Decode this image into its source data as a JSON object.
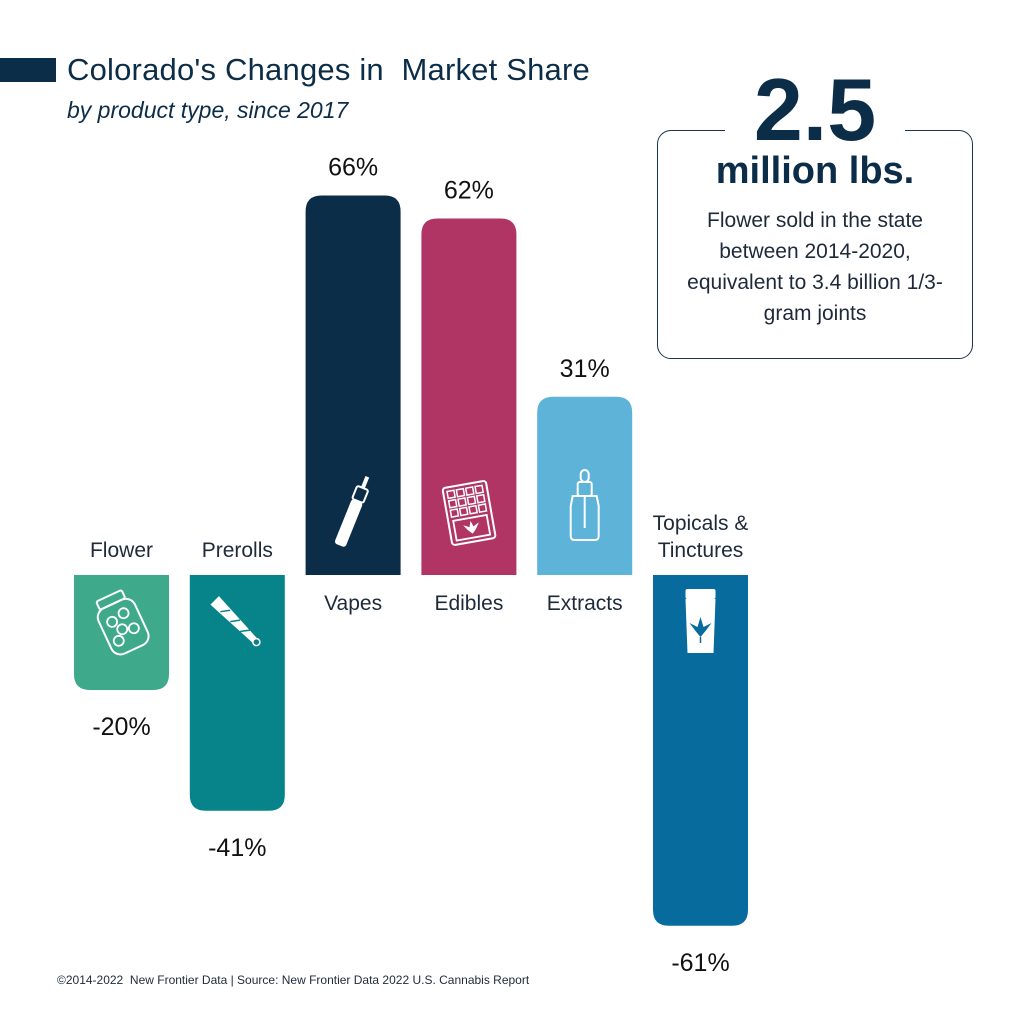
{
  "header": {
    "title": "Colorado's Changes in  Market Share",
    "subtitle": "by product type, since 2017"
  },
  "callout": {
    "big_number": "2.5",
    "unit": "million lbs.",
    "text": "Flower sold in the state between 2014-2020, equivalent to 3.4 billion 1/3-gram joints"
  },
  "footer": "©2014-2022  New Frontier Data | Source: New Frontier Data 2022 U.S. Cannabis Report",
  "chart_data": {
    "type": "bar",
    "categories": [
      "Flower",
      "Prerolls",
      "Vapes",
      "Edibles",
      "Extracts",
      "Topicals & Tinctures"
    ],
    "category_lines": [
      [
        "Flower"
      ],
      [
        "Prerolls"
      ],
      [
        "Vapes"
      ],
      [
        "Edibles"
      ],
      [
        "Extracts"
      ],
      [
        "Topicals &",
        "Tinctures"
      ]
    ],
    "values": [
      -20,
      -41,
      66,
      62,
      31,
      -61
    ],
    "value_labels": [
      "-20%",
      "-41%",
      "66%",
      "62%",
      "31%",
      "-61%"
    ],
    "unit": "%",
    "icons": [
      "jar-icon",
      "joint-icon",
      "vape-pen-icon",
      "chocolate-bar-icon",
      "dropper-bottle-icon",
      "tube-icon"
    ],
    "colors": [
      "#3fa98c",
      "#07838a",
      "#0c2d48",
      "#b03565",
      "#5db4d8",
      "#086b9e"
    ],
    "grid": false,
    "legend": "none"
  }
}
